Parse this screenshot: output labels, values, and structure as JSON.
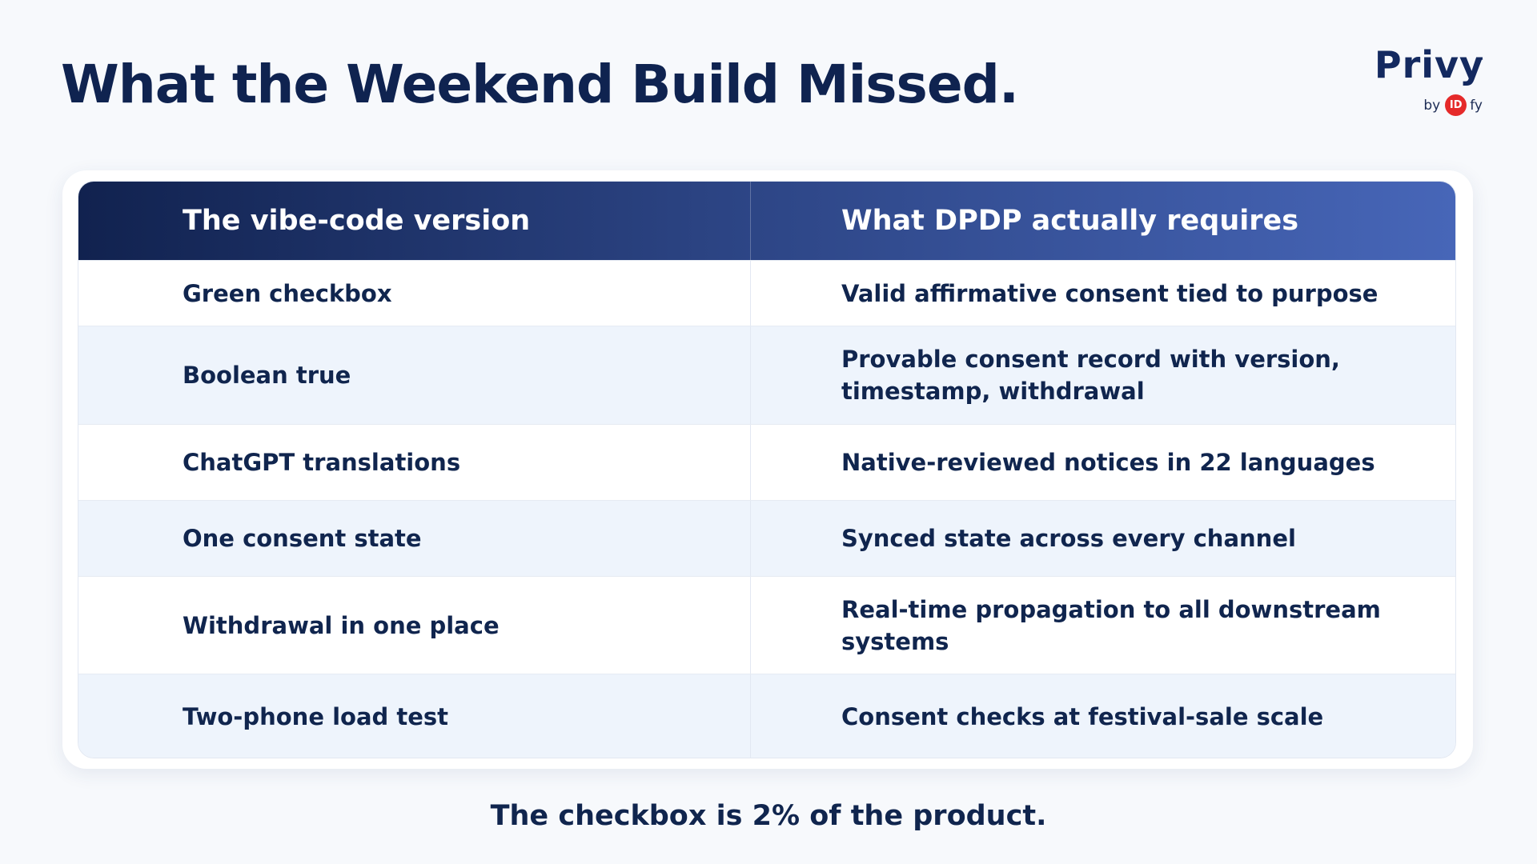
{
  "slide": {
    "title": "What the Weekend Build Missed.",
    "footer": "The checkbox is 2% of the product."
  },
  "logo": {
    "name": "Privy",
    "trademark": "™",
    "by": "by",
    "company_badge": "ID",
    "company_rest": "fy"
  },
  "table": {
    "headers": [
      "The vibe-code version",
      "What DPDP actually requires"
    ],
    "rows": [
      [
        "Green checkbox",
        "Valid affirmative consent tied to purpose"
      ],
      [
        "Boolean true",
        "Provable consent record with version, timestamp, withdrawal"
      ],
      [
        "ChatGPT translations",
        "Native-reviewed notices in 22 languages"
      ],
      [
        "One consent state",
        "Synced state across every channel"
      ],
      [
        "Withdrawal in one place",
        "Real-time propagation to all downstream systems"
      ],
      [
        "Two-phone load test",
        "Consent checks at festival-sale scale"
      ]
    ]
  },
  "colors": {
    "title": "#0f2350",
    "header_gradient_start": "#11224f",
    "header_gradient_end": "#4766b8",
    "row_alt": "#eef4fc",
    "badge_red": "#e52a2a"
  }
}
